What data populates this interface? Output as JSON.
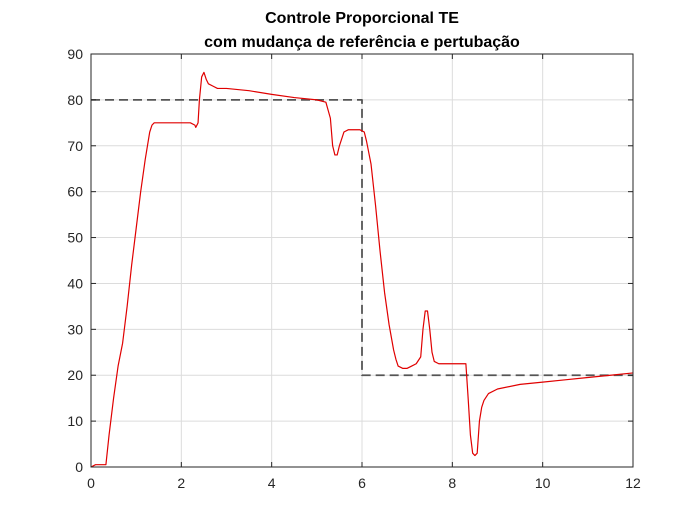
{
  "chart_data": {
    "type": "line",
    "title": "Controle Proporcional TE",
    "subtitle": "com mudança de referência e pertubação",
    "xlabel": "",
    "ylabel": "",
    "xlim": [
      0,
      12
    ],
    "ylim": [
      0,
      90
    ],
    "xticks": [
      0,
      2,
      4,
      6,
      8,
      10,
      12
    ],
    "yticks": [
      0,
      10,
      20,
      30,
      40,
      50,
      60,
      70,
      80,
      90
    ],
    "grid": true,
    "series": [
      {
        "style": "dashed",
        "color": "#555555",
        "x": [
          0,
          6,
          6,
          12
        ],
        "y": [
          80,
          80,
          20,
          20
        ]
      },
      {
        "style": "solid",
        "color": "#e00000",
        "x": [
          0,
          0.1,
          0.25,
          0.33,
          0.4,
          0.5,
          0.6,
          0.7,
          0.8,
          0.9,
          1.0,
          1.1,
          1.2,
          1.3,
          1.35,
          1.4,
          1.5,
          1.7,
          1.9,
          2.1,
          2.2,
          2.3,
          2.32,
          2.37,
          2.4,
          2.45,
          2.5,
          2.55,
          2.6,
          2.7,
          2.8,
          3.0,
          3.5,
          4.0,
          4.5,
          5.0,
          5.2,
          5.3,
          5.35,
          5.4,
          5.45,
          5.5,
          5.6,
          5.7,
          5.8,
          5.95,
          6.05,
          6.1,
          6.2,
          6.3,
          6.4,
          6.5,
          6.6,
          6.7,
          6.75,
          6.8,
          6.9,
          7.0,
          7.1,
          7.2,
          7.3,
          7.35,
          7.4,
          7.45,
          7.5,
          7.55,
          7.6,
          7.7,
          7.8,
          8.0,
          8.3,
          8.35,
          8.4,
          8.45,
          8.5,
          8.55,
          8.6,
          8.65,
          8.7,
          8.8,
          9.0,
          9.5,
          10.0,
          10.5,
          11.0,
          11.5,
          12.0
        ],
        "y": [
          0,
          0.5,
          0.5,
          0.5,
          7,
          15,
          22,
          27,
          35,
          44,
          52,
          60,
          67,
          73,
          74.5,
          75,
          75,
          75,
          75,
          75,
          75,
          74.5,
          74,
          75,
          80,
          85,
          86,
          84.5,
          83.5,
          83,
          82.5,
          82.5,
          82,
          81.2,
          80.5,
          80,
          79.5,
          76,
          70,
          68,
          68,
          70,
          73,
          73.5,
          73.5,
          73.5,
          73,
          71,
          66,
          57,
          47,
          38,
          31,
          25.5,
          23.5,
          22,
          21.5,
          21.5,
          22,
          22.5,
          24,
          30,
          34,
          34,
          30,
          25,
          23,
          22.5,
          22.5,
          22.5,
          22.5,
          15,
          7,
          3,
          2.5,
          3,
          10,
          13,
          14.5,
          16,
          17,
          18,
          18.5,
          19,
          19.5,
          20,
          20.5
        ]
      }
    ]
  }
}
